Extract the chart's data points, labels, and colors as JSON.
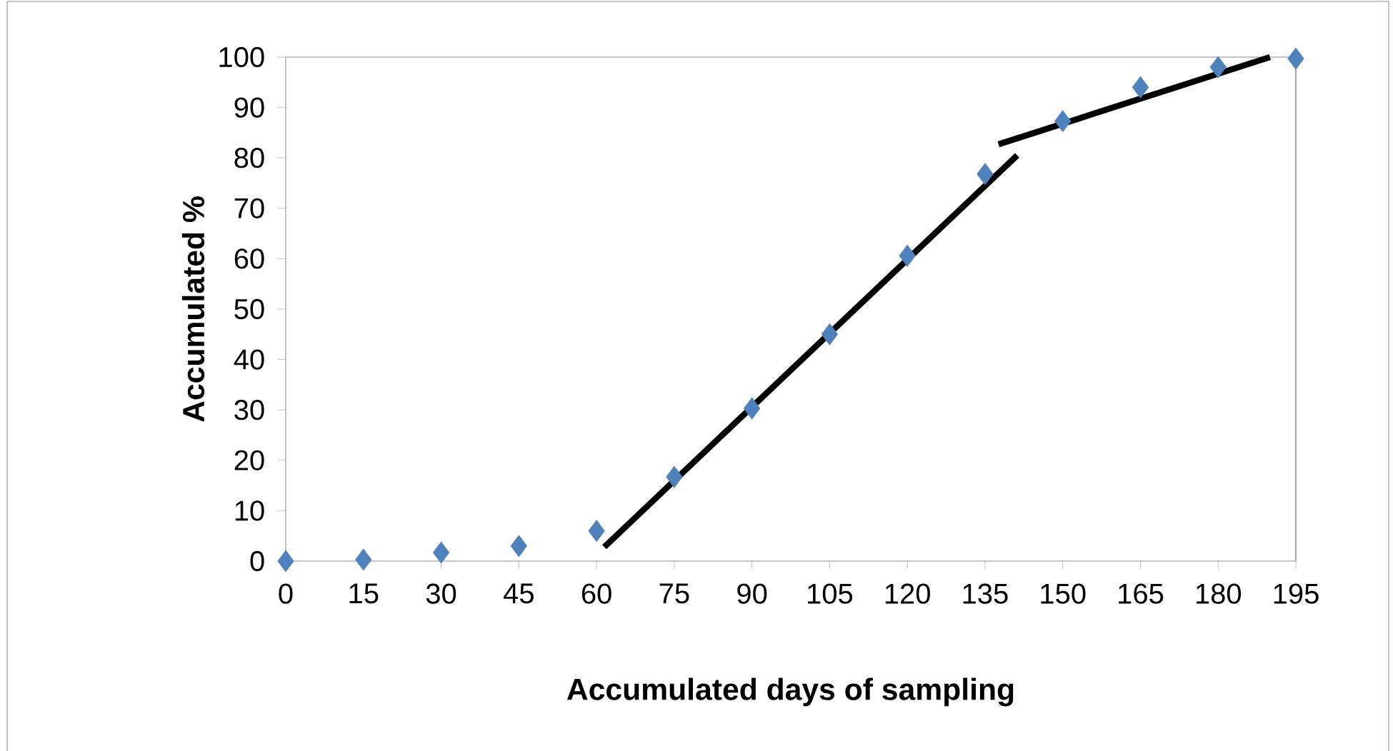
{
  "chart_data": {
    "type": "scatter",
    "xlabel": "Accumulated days of sampling",
    "ylabel": "Accumulated %",
    "xlim": [
      0,
      195
    ],
    "ylim": [
      0,
      100
    ],
    "xticks": [
      0,
      15,
      30,
      45,
      60,
      75,
      90,
      105,
      120,
      135,
      150,
      165,
      180,
      195
    ],
    "yticks": [
      0,
      10,
      20,
      30,
      40,
      50,
      60,
      70,
      80,
      90,
      100
    ],
    "marker": "diamond",
    "series": [
      {
        "color": "#4f81bd",
        "x": [
          0,
          15,
          30,
          45,
          60,
          75,
          90,
          105,
          120,
          135,
          150,
          165,
          180,
          195
        ],
        "values": [
          0,
          0.3,
          1.7,
          3,
          6,
          16.7,
          30.3,
          45,
          60.6,
          76.8,
          87.3,
          94,
          98,
          99.7
        ]
      },
      {
        "type": "line",
        "color": "#000000",
        "marker": "none",
        "x": [
          61.5,
          141.2
        ],
        "values": [
          2.8,
          80.5
        ]
      },
      {
        "type": "line",
        "color": "#000000",
        "marker": "none",
        "x": [
          137.6,
          190
        ],
        "values": [
          82.7,
          100
        ]
      }
    ]
  }
}
